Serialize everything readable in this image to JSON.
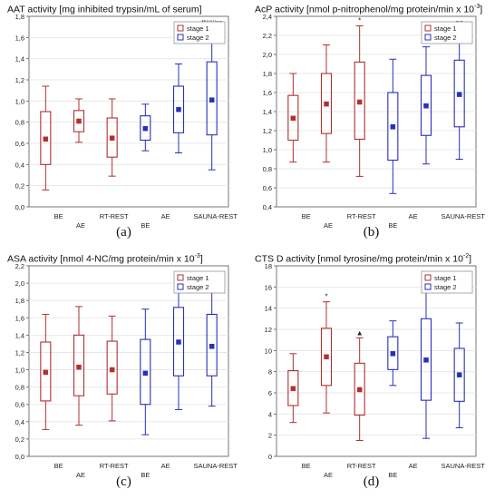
{
  "colors": {
    "stage1": "#b03030",
    "stage2": "#2830b8",
    "grid": "#e3e3e3",
    "axis": "#555555"
  },
  "chart_data": [
    {
      "id": "a",
      "type": "box",
      "title_main": "AAT activity [mg inhibited trypsin/mL of serum]",
      "title_exp": "",
      "panel_label": "(a)",
      "ylim": [
        0,
        1.8
      ],
      "yticks": [
        0.0,
        0.2,
        0.4,
        0.6,
        0.8,
        1.0,
        1.2,
        1.4,
        1.6,
        1.8
      ],
      "ytick_labels": [
        "0,0",
        "0,2",
        "0,4",
        "0,6",
        "0,8",
        "1,0",
        "1,2",
        "1,4",
        "1,6",
        "1,8"
      ],
      "groups_row1": [
        "BE",
        "RT-REST",
        "AE",
        "SAUNA-REST"
      ],
      "groups_row2": [
        "AE",
        "BE"
      ],
      "legend": [
        "stage 1",
        "stage 2"
      ],
      "series": [
        {
          "name": "stage 1",
          "stage": 1,
          "position": 0,
          "whisker_low": 0.16,
          "q1": 0.4,
          "mean": 0.64,
          "q3": 0.9,
          "whisker_high": 1.14,
          "annotation": ""
        },
        {
          "name": "stage 1",
          "stage": 1,
          "position": 1,
          "whisker_low": 0.61,
          "q1": 0.71,
          "mean": 0.81,
          "q3": 0.91,
          "whisker_high": 1.02,
          "annotation": ""
        },
        {
          "name": "stage 1",
          "stage": 1,
          "position": 2,
          "whisker_low": 0.29,
          "q1": 0.47,
          "mean": 0.65,
          "q3": 0.84,
          "whisker_high": 1.02,
          "annotation": ""
        },
        {
          "name": "stage 2",
          "stage": 2,
          "position": 3,
          "whisker_low": 0.53,
          "q1": 0.63,
          "mean": 0.74,
          "q3": 0.86,
          "whisker_high": 0.97,
          "annotation": ""
        },
        {
          "name": "stage 2",
          "stage": 2,
          "position": 4,
          "whisker_low": 0.51,
          "q1": 0.7,
          "mean": 0.92,
          "q3": 1.14,
          "whisker_high": 1.35,
          "annotation": ""
        },
        {
          "name": "stage 2",
          "stage": 2,
          "position": 5,
          "whisker_low": 0.35,
          "q1": 0.68,
          "mean": 1.01,
          "q3": 1.37,
          "whisker_high": 1.7,
          "annotation": "**###oo"
        }
      ]
    },
    {
      "id": "b",
      "type": "box",
      "title_main": "AcP activity [nmol p-nitrophenol/mg protein/min x 10",
      "title_exp": "-3",
      "panel_label": "(b)",
      "ylim": [
        0.4,
        2.4
      ],
      "yticks": [
        0.4,
        0.6,
        0.8,
        1.0,
        1.2,
        1.4,
        1.6,
        1.8,
        2.0,
        2.2,
        2.4
      ],
      "ytick_labels": [
        "0,4",
        "0,6",
        "0,8",
        "1,0",
        "1,2",
        "1,4",
        "1,6",
        "1,8",
        "2,0",
        "2,2",
        "2,4"
      ],
      "groups_row1": [
        "BE",
        "RT-REST",
        "AE",
        "SAUNA-REST"
      ],
      "groups_row2": [
        "AE",
        "BE"
      ],
      "legend": [
        "stage 1",
        "stage 2"
      ],
      "series": [
        {
          "name": "stage 1",
          "stage": 1,
          "position": 0,
          "whisker_low": 0.87,
          "q1": 1.1,
          "mean": 1.33,
          "q3": 1.57,
          "whisker_high": 1.8,
          "annotation": ""
        },
        {
          "name": "stage 1",
          "stage": 1,
          "position": 1,
          "whisker_low": 0.87,
          "q1": 1.17,
          "mean": 1.48,
          "q3": 1.8,
          "whisker_high": 2.1,
          "annotation": ""
        },
        {
          "name": "stage 1",
          "stage": 1,
          "position": 2,
          "whisker_low": 0.72,
          "q1": 1.11,
          "mean": 1.5,
          "q3": 1.92,
          "whisker_high": 2.3,
          "annotation": "*"
        },
        {
          "name": "stage 2",
          "stage": 2,
          "position": 3,
          "whisker_low": 0.54,
          "q1": 0.89,
          "mean": 1.24,
          "q3": 1.6,
          "whisker_high": 1.95,
          "annotation": ""
        },
        {
          "name": "stage 2",
          "stage": 2,
          "position": 4,
          "whisker_low": 0.85,
          "q1": 1.15,
          "mean": 1.46,
          "q3": 1.78,
          "whisker_high": 2.08,
          "annotation": ""
        },
        {
          "name": "stage 2",
          "stage": 2,
          "position": 5,
          "whisker_low": 0.9,
          "q1": 1.24,
          "mean": 1.58,
          "q3": 1.94,
          "whisker_high": 2.28,
          "annotation": "oo"
        }
      ]
    },
    {
      "id": "c",
      "type": "box",
      "title_main": "ASA activity [nmol 4-NC/mg protein/min x 10",
      "title_exp": "-3",
      "panel_label": "(c)",
      "ylim": [
        0,
        2.2
      ],
      "yticks": [
        0,
        0.2,
        0.4,
        0.6,
        0.8,
        1.0,
        1.2,
        1.4,
        1.6,
        1.8,
        2.0,
        2.2
      ],
      "ytick_labels": [
        "0,0",
        "0,2",
        "0,4",
        "0,6",
        "0,8",
        "1,0",
        "1,2",
        "1,4",
        "1,6",
        "1,8",
        "2,0",
        "2,2"
      ],
      "groups_row1": [
        "BE",
        "RT-REST",
        "AE",
        "SAUNA-REST"
      ],
      "groups_row2": [
        "AE",
        "BE"
      ],
      "legend": [
        "stage 1",
        "stage 2"
      ],
      "series": [
        {
          "name": "stage 1",
          "stage": 1,
          "position": 0,
          "whisker_low": 0.31,
          "q1": 0.64,
          "mean": 0.97,
          "q3": 1.32,
          "whisker_high": 1.64,
          "annotation": ""
        },
        {
          "name": "stage 1",
          "stage": 1,
          "position": 1,
          "whisker_low": 0.36,
          "q1": 0.7,
          "mean": 1.03,
          "q3": 1.4,
          "whisker_high": 1.73,
          "annotation": ""
        },
        {
          "name": "stage 1",
          "stage": 1,
          "position": 2,
          "whisker_low": 0.41,
          "q1": 0.72,
          "mean": 1.0,
          "q3": 1.33,
          "whisker_high": 1.62,
          "annotation": ""
        },
        {
          "name": "stage 2",
          "stage": 2,
          "position": 3,
          "whisker_low": 0.25,
          "q1": 0.6,
          "mean": 0.96,
          "q3": 1.35,
          "whisker_high": 1.7,
          "annotation": ""
        },
        {
          "name": "stage 2",
          "stage": 2,
          "position": 4,
          "whisker_low": 0.54,
          "q1": 0.93,
          "mean": 1.32,
          "q3": 1.72,
          "whisker_high": 2.1,
          "annotation": ""
        },
        {
          "name": "stage 2",
          "stage": 2,
          "position": 5,
          "whisker_low": 0.58,
          "q1": 0.93,
          "mean": 1.27,
          "q3": 1.64,
          "whisker_high": 1.97,
          "annotation": "oo"
        }
      ]
    },
    {
      "id": "d",
      "type": "box",
      "title_main": "CTS D activity [nmol tyrosine/mg protein/min x 10",
      "title_exp": "-2",
      "panel_label": "(d)",
      "ylim": [
        0,
        18
      ],
      "yticks": [
        0,
        2,
        4,
        6,
        8,
        10,
        12,
        14,
        16,
        18
      ],
      "ytick_labels": [
        "0",
        "2",
        "4",
        "6",
        "8",
        "10",
        "12",
        "14",
        "16",
        "18"
      ],
      "groups_row1": [
        "BE",
        "RT-REST",
        "AE",
        "SAUNA-REST"
      ],
      "groups_row2": [
        "AE",
        "BE"
      ],
      "legend": [
        "stage 1",
        "stage 2"
      ],
      "series": [
        {
          "name": "stage 1",
          "stage": 1,
          "position": 0,
          "whisker_low": 3.2,
          "q1": 4.8,
          "mean": 6.4,
          "q3": 8.1,
          "whisker_high": 9.7,
          "annotation": ""
        },
        {
          "name": "stage 1",
          "stage": 1,
          "position": 1,
          "whisker_low": 4.1,
          "q1": 6.7,
          "mean": 9.4,
          "q3": 12.1,
          "whisker_high": 14.6,
          "annotation": "*"
        },
        {
          "name": "stage 1",
          "stage": 1,
          "position": 2,
          "whisker_low": 1.5,
          "q1": 3.9,
          "mean": 6.3,
          "q3": 8.8,
          "whisker_high": 11.2,
          "annotation": "▲"
        },
        {
          "name": "stage 2",
          "stage": 2,
          "position": 3,
          "whisker_low": 6.7,
          "q1": 8.2,
          "mean": 9.7,
          "q3": 11.3,
          "whisker_high": 12.8,
          "annotation": ""
        },
        {
          "name": "stage 2",
          "stage": 2,
          "position": 4,
          "whisker_low": 1.7,
          "q1": 5.3,
          "mean": 9.1,
          "q3": 13.0,
          "whisker_high": 16.6,
          "annotation": ""
        },
        {
          "name": "stage 2",
          "stage": 2,
          "position": 5,
          "whisker_low": 2.7,
          "q1": 5.2,
          "mean": 7.7,
          "q3": 10.2,
          "whisker_high": 12.6,
          "annotation": ""
        }
      ]
    }
  ]
}
